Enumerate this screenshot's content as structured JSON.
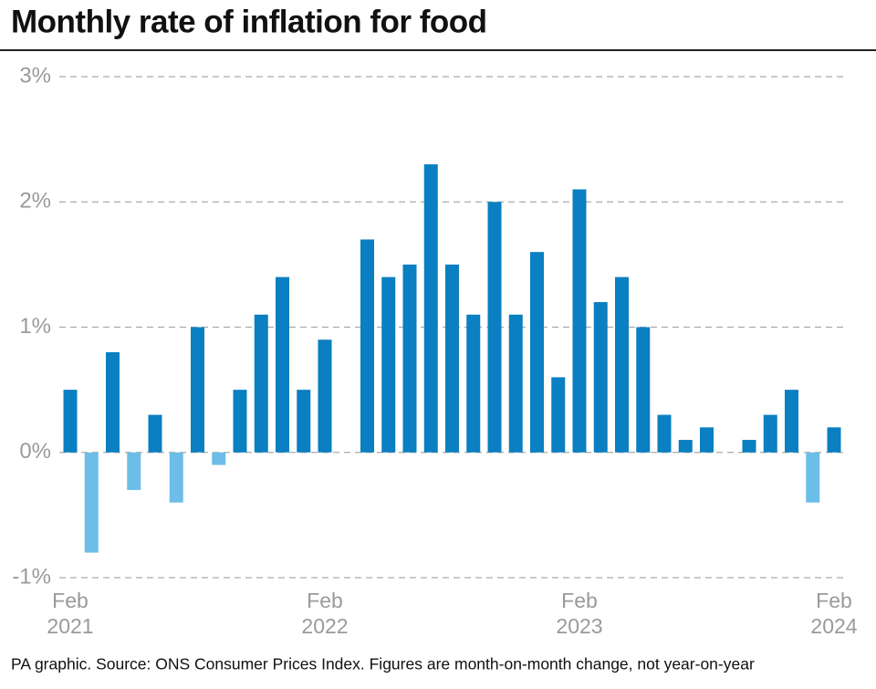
{
  "chart_data": {
    "type": "bar",
    "title": "Monthly rate of inflation for food",
    "footnote": "PA graphic. Source: ONS Consumer Prices Index. Figures are month-on-month change, not year-on-year",
    "categories": [
      "Feb 2021",
      null,
      null,
      null,
      null,
      null,
      null,
      null,
      null,
      null,
      null,
      null,
      "Feb 2022",
      null,
      null,
      null,
      null,
      null,
      null,
      null,
      null,
      null,
      null,
      null,
      "Feb 2023",
      null,
      null,
      null,
      null,
      null,
      null,
      null,
      null,
      null,
      null,
      null,
      "Feb 2024"
    ],
    "values": [
      0.5,
      -0.8,
      0.8,
      -0.3,
      0.3,
      -0.4,
      1.0,
      -0.1,
      0.5,
      1.1,
      1.4,
      0.5,
      0.9,
      0,
      1.7,
      1.4,
      1.5,
      2.3,
      1.5,
      1.1,
      2.0,
      1.1,
      1.6,
      0.6,
      2.1,
      1.2,
      1.4,
      1.0,
      0.3,
      0.1,
      0.2,
      0,
      0.1,
      0.3,
      0.5,
      -0.4,
      0.2
    ],
    "color": "#0a7fc1",
    "negative_color": "#6cbde8",
    "ylim": [
      -1,
      3
    ],
    "yticks": [
      {
        "value": -1,
        "label": "-1%"
      },
      {
        "value": 0,
        "label": "0%"
      },
      {
        "value": 1,
        "label": "1%"
      },
      {
        "value": 2,
        "label": "2%"
      },
      {
        "value": 3,
        "label": "3%"
      }
    ],
    "grid": true
  }
}
